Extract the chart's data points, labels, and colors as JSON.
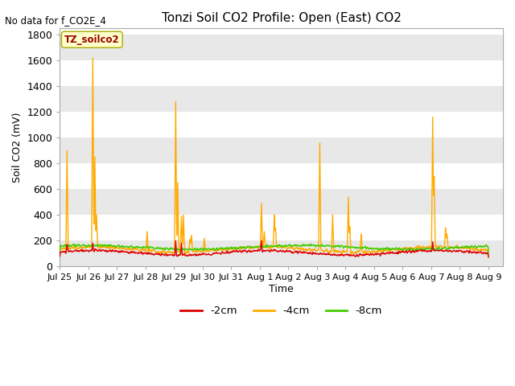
{
  "title": "Tonzi Soil CO2 Profile: Open (East) CO2",
  "no_data_text": "No data for f_CO2E_4",
  "ylabel": "Soil CO2 (mV)",
  "xlabel": "Time",
  "ylim": [
    0,
    1850
  ],
  "yticks": [
    0,
    200,
    400,
    600,
    800,
    1000,
    1200,
    1400,
    1600,
    1800
  ],
  "bg_color": "#ffffff",
  "axes_bg_color": "#ffffff",
  "band_colors": [
    "#e8e8e8",
    "#ffffff"
  ],
  "legend_label": "TZ_soilco2",
  "legend_box_color": "#ffffcc",
  "legend_box_edge": "#aaaa00",
  "series": {
    "m2cm": {
      "label": "-2cm",
      "color": "#dd0000",
      "lw": 1.0
    },
    "m4cm": {
      "label": "-4cm",
      "color": "#ffaa00",
      "lw": 1.0
    },
    "m8cm": {
      "label": "-8cm",
      "color": "#44cc00",
      "lw": 1.0
    }
  },
  "xlim": [
    0,
    15.5
  ],
  "xtick_labels": [
    "Jul 25",
    "Jul 26",
    "Jul 27",
    "Jul 28",
    "Jul 29",
    "Jul 30",
    "Jul 31",
    "Aug 1",
    "Aug 2",
    "Aug 3",
    "Aug 4",
    "Aug 5",
    "Aug 6",
    "Aug 7",
    "Aug 8",
    "Aug 9"
  ],
  "xtick_positions": [
    0,
    1,
    2,
    3,
    4,
    5,
    6,
    7,
    8,
    9,
    10,
    11,
    12,
    13,
    14,
    15
  ],
  "spikes_m4": [
    [
      0.25,
      900
    ],
    [
      1.15,
      1620
    ],
    [
      1.22,
      850
    ],
    [
      1.28,
      400
    ],
    [
      3.05,
      270
    ],
    [
      4.05,
      1280
    ],
    [
      4.12,
      650
    ],
    [
      4.25,
      390
    ],
    [
      4.32,
      400
    ],
    [
      4.55,
      210
    ],
    [
      4.6,
      240
    ],
    [
      5.05,
      220
    ],
    [
      7.05,
      490
    ],
    [
      7.15,
      270
    ],
    [
      7.5,
      400
    ],
    [
      7.55,
      300
    ],
    [
      9.1,
      960
    ],
    [
      9.55,
      400
    ],
    [
      10.1,
      540
    ],
    [
      10.15,
      310
    ],
    [
      10.55,
      250
    ],
    [
      13.05,
      1160
    ],
    [
      13.1,
      700
    ],
    [
      13.5,
      300
    ],
    [
      13.55,
      250
    ]
  ],
  "spikes_m2": [
    [
      0.25,
      170
    ],
    [
      1.15,
      180
    ],
    [
      4.05,
      200
    ],
    [
      4.25,
      180
    ],
    [
      7.05,
      200
    ],
    [
      13.05,
      190
    ]
  ],
  "n_points": 1500,
  "n_days": 15
}
